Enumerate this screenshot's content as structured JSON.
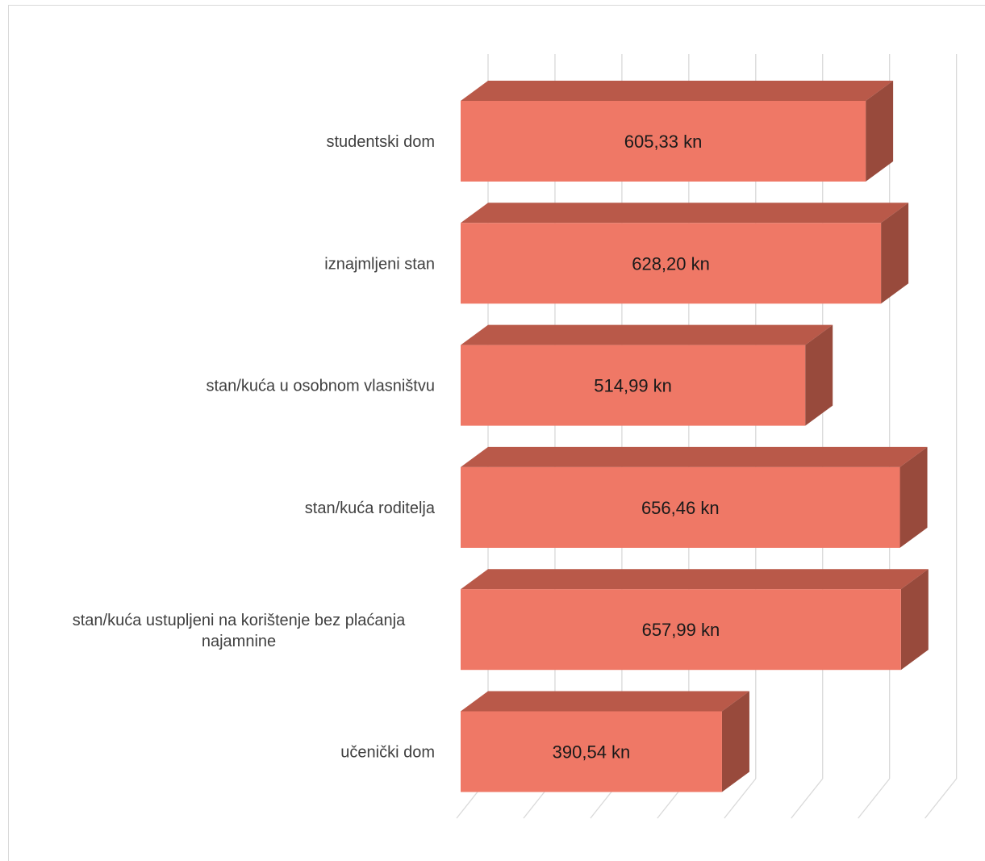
{
  "chart_data": {
    "type": "bar",
    "orientation": "horizontal",
    "style": "3d",
    "categories": [
      "studentski dom",
      "iznajmljeni stan",
      "stan/kuća u osobnom vlasništvu",
      "stan/kuća roditelja",
      "stan/kuća ustupljeni na korištenje bez plaćanja najamnine",
      "učenički dom"
    ],
    "category_lines": [
      [
        "studentski dom"
      ],
      [
        "iznajmljeni stan"
      ],
      [
        "stan/kuća u osobnom vlasništvu"
      ],
      [
        "stan/kuća roditelja"
      ],
      [
        "stan/kuća ustupljeni na korištenje bez plaćanja",
        "najamnine"
      ],
      [
        "učenički dom"
      ]
    ],
    "values": [
      605.33,
      628.2,
      514.99,
      656.46,
      657.99,
      390.54
    ],
    "data_labels": [
      "605,33 kn",
      "628,20 kn",
      "514,99 kn",
      "656,46 kn",
      "657,99 kn",
      "390,54 kn"
    ],
    "xlim": [
      0,
      700
    ],
    "x_gridline_step": 100,
    "grid": true,
    "tick_labels_visible": false,
    "legend": "none",
    "title": "",
    "xlabel": "",
    "ylabel": "",
    "colors": {
      "bar_front": "#ef7866",
      "bar_top": "#b95949",
      "bar_side": "#984a3c",
      "grid": "#d9d9d9",
      "frame": "#d9d9d9"
    }
  }
}
